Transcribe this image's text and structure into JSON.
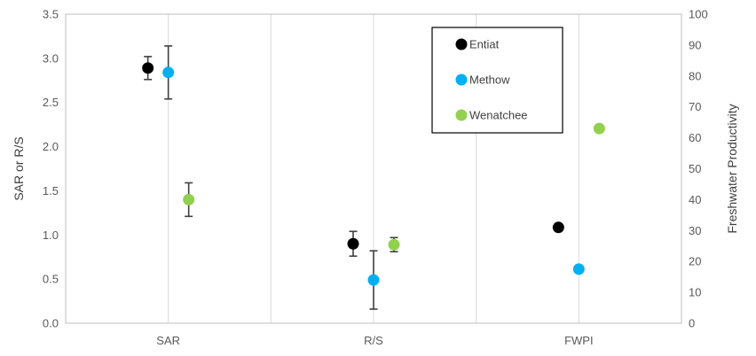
{
  "chart_data": {
    "type": "scatter",
    "title": "",
    "categories": [
      "SAR",
      "R/S",
      "FWPI"
    ],
    "y_left": {
      "label": "SAR or R/S",
      "min": 0,
      "max": 3.5,
      "step": 0.5,
      "tick_labels": [
        "0.0",
        "0.5",
        "1.0",
        "1.5",
        "2.0",
        "2.5",
        "3.0",
        "3.5"
      ]
    },
    "y_right": {
      "label": "Freshwater Productivity",
      "min": 0,
      "max": 100,
      "step": 10,
      "tick_labels": [
        "0",
        "10",
        "20",
        "30",
        "40",
        "50",
        "60",
        "70",
        "80",
        "90",
        "100"
      ]
    },
    "grid": "vertical",
    "legend": {
      "position": "top-right"
    },
    "series": [
      {
        "name": "Entiat",
        "color": "#000000",
        "points": [
          {
            "category": "SAR",
            "axis": "left",
            "y": 2.89,
            "err_low": 2.76,
            "err_high": 3.02
          },
          {
            "category": "R/S",
            "axis": "left",
            "y": 0.9,
            "err_low": 0.76,
            "err_high": 1.04
          },
          {
            "category": "FWPI",
            "axis": "right",
            "y": 31
          }
        ]
      },
      {
        "name": "Methow",
        "color": "#00B0F0",
        "points": [
          {
            "category": "SAR",
            "axis": "left",
            "y": 2.84,
            "err_low": 2.54,
            "err_high": 3.14
          },
          {
            "category": "R/S",
            "axis": "left",
            "y": 0.49,
            "err_low": 0.16,
            "err_high": 0.82
          },
          {
            "category": "FWPI",
            "axis": "right",
            "y": 17.5
          }
        ]
      },
      {
        "name": "Wenatchee",
        "color": "#92D050",
        "points": [
          {
            "category": "SAR",
            "axis": "left",
            "y": 1.4,
            "err_low": 1.21,
            "err_high": 1.59
          },
          {
            "category": "R/S",
            "axis": "left",
            "y": 0.89,
            "err_low": 0.81,
            "err_high": 0.97
          },
          {
            "category": "FWPI",
            "axis": "right",
            "y": 63
          }
        ]
      }
    ]
  }
}
